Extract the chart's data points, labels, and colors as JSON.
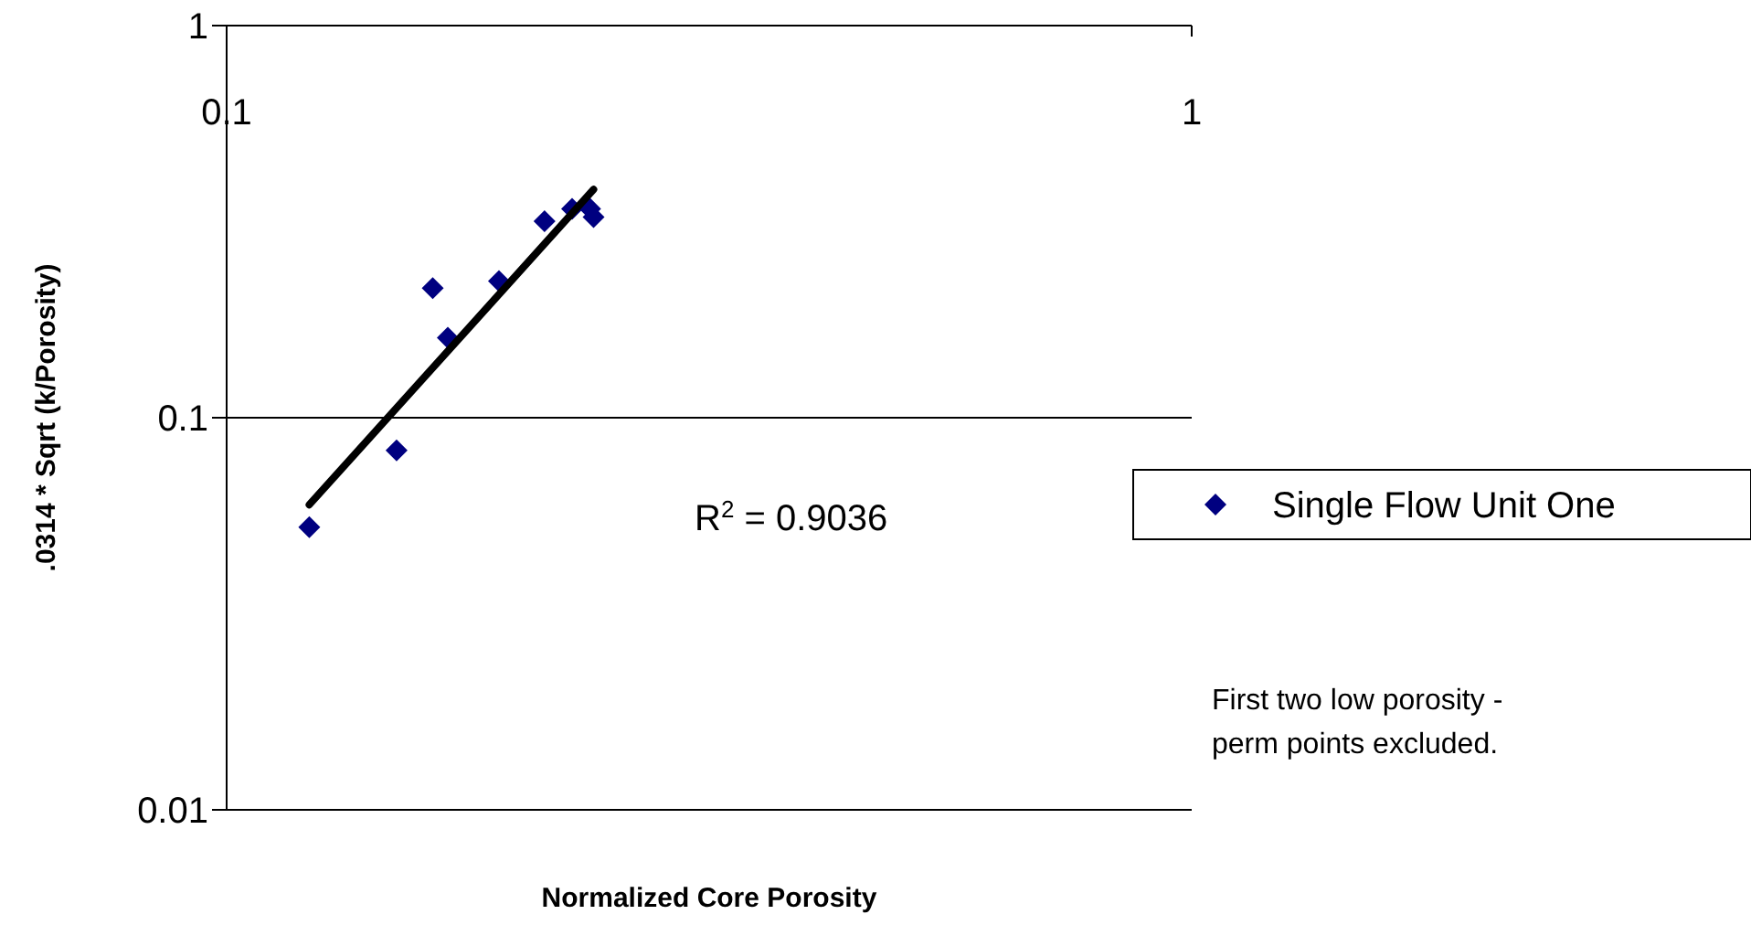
{
  "chart_data": {
    "type": "scatter",
    "xlabel": "Normalized Core Porosity",
    "ylabel": ".0314 * Sqrt (k/Porosity)",
    "log": "xy",
    "xlim": [
      0.1,
      1
    ],
    "xticks": [
      0.1,
      1
    ],
    "ylim": [
      0.01,
      1
    ],
    "yticks": [
      0.01,
      0.1,
      1
    ],
    "grid": "y",
    "legend": "right",
    "marker": "diamond",
    "series": [
      {
        "name": "Single Flow Unit One",
        "color": "#000080",
        "x": [
          0.1218,
          0.15,
          0.1635,
          0.1695,
          0.1915,
          0.2135,
          0.228,
          0.238,
          0.24
        ],
        "values": [
          0.0526,
          0.0825,
          0.214,
          0.16,
          0.223,
          0.317,
          0.341,
          0.341,
          0.325
        ]
      },
      {
        "type": "line",
        "color": "#000000",
        "marker": "none",
        "line_style": "solid",
        "x": [
          0.1218,
          0.24
        ],
        "values": [
          0.06,
          0.382
        ]
      }
    ],
    "annotations": [
      {
        "text": "R$^{2}$ = 0.9036"
      },
      {
        "text": "First two low porosity - perm points excluded."
      }
    ]
  }
}
